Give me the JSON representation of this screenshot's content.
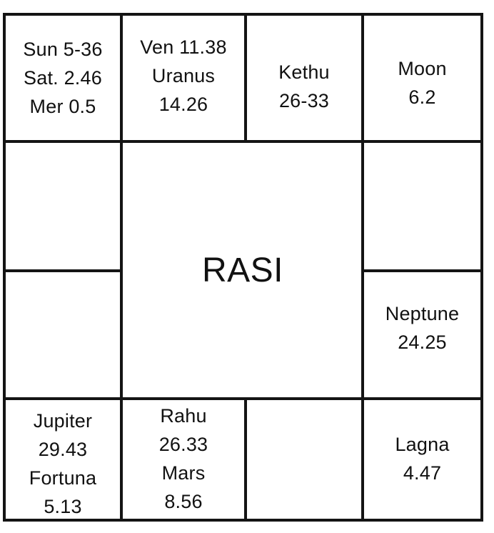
{
  "chart_title": "RASI",
  "houses": {
    "top_1": [
      "Sun 5-36",
      "Sat. 2.46",
      "Mer 0.5"
    ],
    "top_2": [
      "Ven 11.38",
      "Uranus",
      "14.26"
    ],
    "top_3": [
      "Kethu",
      "26-33"
    ],
    "top_4": [
      "Moon",
      "6.2"
    ],
    "right_1": [],
    "right_2": [
      "Neptune",
      "24.25"
    ],
    "bottom_4": [
      "Lagna",
      "4.47"
    ],
    "bottom_3": [],
    "bottom_2": [
      "Rahu",
      "26.33",
      "Mars",
      "8.56"
    ],
    "bottom_1": [
      "Jupiter",
      "29.43",
      "Fortuna",
      "5.13"
    ],
    "left_2": [],
    "left_1": []
  }
}
